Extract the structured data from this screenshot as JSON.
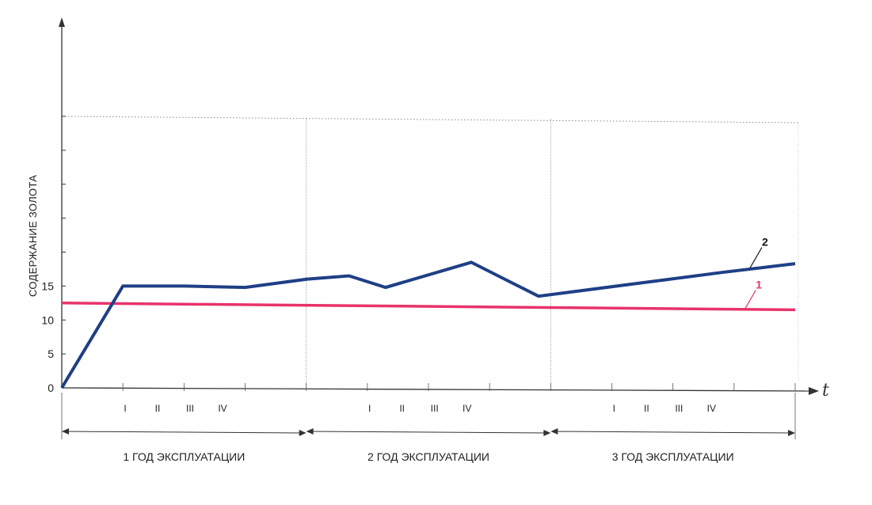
{
  "chart_data": {
    "type": "line",
    "ylabel": "СОДЕРЖАНИЕ ЗОЛОТА",
    "xlabel": "t",
    "y_ticks": [
      "0",
      "5",
      "10",
      "15"
    ],
    "ylim": [
      0,
      40
    ],
    "xlim": [
      0,
      12
    ],
    "quarter_labels": [
      "I",
      "II",
      "III",
      "IV"
    ],
    "periods": [
      {
        "label": "1 ГОД ЭКСПЛУАТАЦИИ",
        "start": 0,
        "end": 4
      },
      {
        "label": "2 ГОД ЭКСПЛУАТАЦИИ",
        "start": 4,
        "end": 8
      },
      {
        "label": "3 ГОД ЭКСПЛУАТАЦИИ",
        "start": 8,
        "end": 12
      }
    ],
    "grid": "vertical period dividers, dotted top line at y=40",
    "series": [
      {
        "name": "1",
        "color": "#e8336a",
        "points": [
          [
            0,
            12.5
          ],
          [
            12,
            11.5
          ]
        ]
      },
      {
        "name": "2",
        "color": "#1f3f86",
        "points": [
          [
            0,
            0
          ],
          [
            1,
            15
          ],
          [
            2,
            15
          ],
          [
            3,
            14.8
          ],
          [
            4,
            16
          ],
          [
            4.7,
            16.5
          ],
          [
            5.3,
            14.8
          ],
          [
            6.7,
            18.5
          ],
          [
            7.8,
            13.5
          ],
          [
            10.8,
            17
          ],
          [
            12,
            18.3
          ]
        ]
      }
    ]
  }
}
